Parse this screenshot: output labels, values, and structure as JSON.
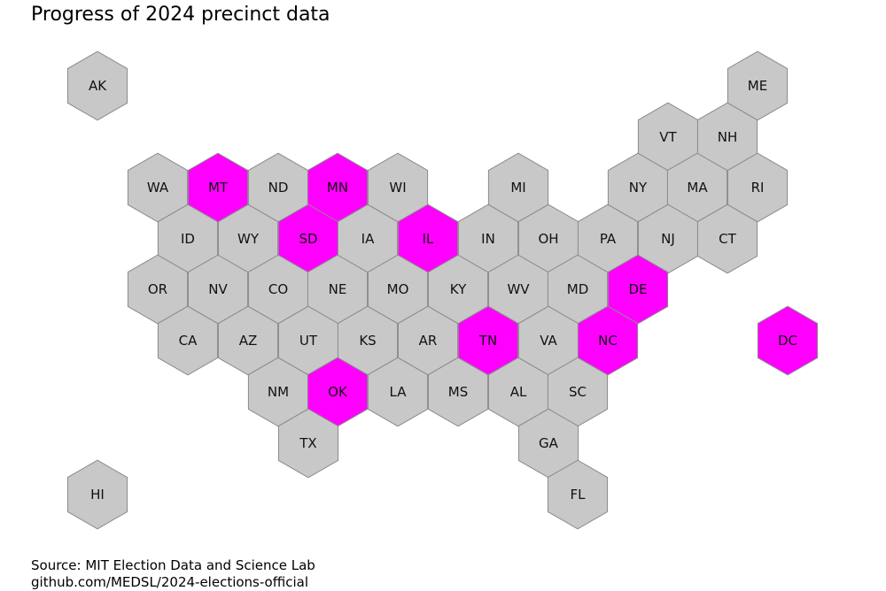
{
  "title": "Progress of 2024 precinct data",
  "source_line1": "Source: MIT Election Data and Science Lab",
  "source_line2": "github.com/MEDSL/2024-elections-official",
  "colors": {
    "complete": "#ff00ff",
    "pending": "#c8c8c8",
    "stroke": "#8a8a8a"
  },
  "states": [
    {
      "abbr": "AK",
      "status": "pending"
    },
    {
      "abbr": "ME",
      "status": "pending"
    },
    {
      "abbr": "VT",
      "status": "pending"
    },
    {
      "abbr": "NH",
      "status": "pending"
    },
    {
      "abbr": "WA",
      "status": "pending"
    },
    {
      "abbr": "MT",
      "status": "complete"
    },
    {
      "abbr": "ND",
      "status": "pending"
    },
    {
      "abbr": "MN",
      "status": "complete"
    },
    {
      "abbr": "WI",
      "status": "pending"
    },
    {
      "abbr": "MI",
      "status": "pending"
    },
    {
      "abbr": "NY",
      "status": "pending"
    },
    {
      "abbr": "MA",
      "status": "pending"
    },
    {
      "abbr": "RI",
      "status": "pending"
    },
    {
      "abbr": "ID",
      "status": "pending"
    },
    {
      "abbr": "WY",
      "status": "pending"
    },
    {
      "abbr": "SD",
      "status": "complete"
    },
    {
      "abbr": "IA",
      "status": "pending"
    },
    {
      "abbr": "IL",
      "status": "complete"
    },
    {
      "abbr": "IN",
      "status": "pending"
    },
    {
      "abbr": "OH",
      "status": "pending"
    },
    {
      "abbr": "PA",
      "status": "pending"
    },
    {
      "abbr": "NJ",
      "status": "pending"
    },
    {
      "abbr": "CT",
      "status": "pending"
    },
    {
      "abbr": "OR",
      "status": "pending"
    },
    {
      "abbr": "NV",
      "status": "pending"
    },
    {
      "abbr": "CO",
      "status": "pending"
    },
    {
      "abbr": "NE",
      "status": "pending"
    },
    {
      "abbr": "MO",
      "status": "pending"
    },
    {
      "abbr": "KY",
      "status": "pending"
    },
    {
      "abbr": "WV",
      "status": "pending"
    },
    {
      "abbr": "MD",
      "status": "pending"
    },
    {
      "abbr": "DE",
      "status": "complete"
    },
    {
      "abbr": "CA",
      "status": "pending"
    },
    {
      "abbr": "AZ",
      "status": "pending"
    },
    {
      "abbr": "UT",
      "status": "pending"
    },
    {
      "abbr": "KS",
      "status": "pending"
    },
    {
      "abbr": "AR",
      "status": "pending"
    },
    {
      "abbr": "TN",
      "status": "complete"
    },
    {
      "abbr": "VA",
      "status": "pending"
    },
    {
      "abbr": "NC",
      "status": "complete"
    },
    {
      "abbr": "DC",
      "status": "complete"
    },
    {
      "abbr": "NM",
      "status": "pending"
    },
    {
      "abbr": "OK",
      "status": "complete"
    },
    {
      "abbr": "LA",
      "status": "pending"
    },
    {
      "abbr": "MS",
      "status": "pending"
    },
    {
      "abbr": "AL",
      "status": "pending"
    },
    {
      "abbr": "SC",
      "status": "pending"
    },
    {
      "abbr": "TX",
      "status": "pending"
    },
    {
      "abbr": "GA",
      "status": "pending"
    },
    {
      "abbr": "HI",
      "status": "pending"
    },
    {
      "abbr": "FL",
      "status": "pending"
    }
  ]
}
